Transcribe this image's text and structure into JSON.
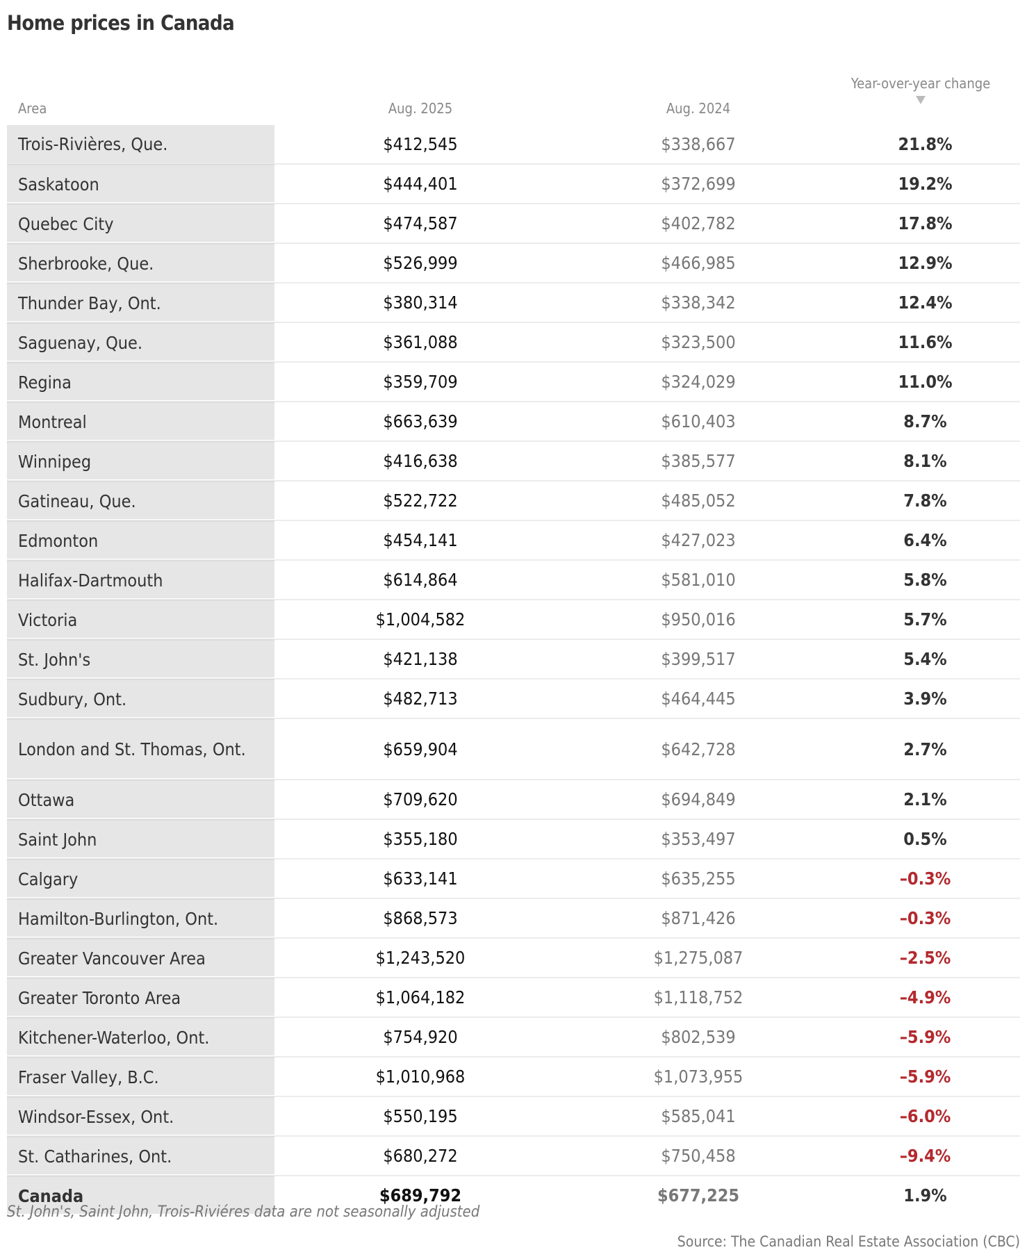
{
  "title": "Home prices in Canada",
  "columns": {
    "area": "Area",
    "aug2025": "Aug. 2025",
    "aug2024": "Aug. 2024",
    "yoy": "Year-over-year change",
    "sort_icon": "triangle-down-icon"
  },
  "colors": {
    "negative": "#b3292e",
    "area_bg": "#e6e6e6"
  },
  "rows": [
    {
      "area": "Trois-Rivières, Que.",
      "aug2025": "$412,545",
      "aug2024": "$338,667",
      "yoy": "21.8%",
      "negative": false
    },
    {
      "area": "Saskatoon",
      "aug2025": "$444,401",
      "aug2024": "$372,699",
      "yoy": "19.2%",
      "negative": false
    },
    {
      "area": "Quebec City",
      "aug2025": "$474,587",
      "aug2024": "$402,782",
      "yoy": "17.8%",
      "negative": false
    },
    {
      "area": "Sherbrooke, Que.",
      "aug2025": "$526,999",
      "aug2024": "$466,985",
      "yoy": "12.9%",
      "negative": false
    },
    {
      "area": "Thunder Bay, Ont.",
      "aug2025": "$380,314",
      "aug2024": "$338,342",
      "yoy": "12.4%",
      "negative": false
    },
    {
      "area": "Saguenay, Que.",
      "aug2025": "$361,088",
      "aug2024": "$323,500",
      "yoy": "11.6%",
      "negative": false
    },
    {
      "area": "Regina",
      "aug2025": "$359,709",
      "aug2024": "$324,029",
      "yoy": "11.0%",
      "negative": false
    },
    {
      "area": "Montreal",
      "aug2025": "$663,639",
      "aug2024": "$610,403",
      "yoy": "8.7%",
      "negative": false
    },
    {
      "area": "Winnipeg",
      "aug2025": "$416,638",
      "aug2024": "$385,577",
      "yoy": "8.1%",
      "negative": false
    },
    {
      "area": "Gatineau, Que.",
      "aug2025": "$522,722",
      "aug2024": "$485,052",
      "yoy": "7.8%",
      "negative": false
    },
    {
      "area": "Edmonton",
      "aug2025": "$454,141",
      "aug2024": "$427,023",
      "yoy": "6.4%",
      "negative": false
    },
    {
      "area": "Halifax-Dartmouth",
      "aug2025": "$614,864",
      "aug2024": "$581,010",
      "yoy": "5.8%",
      "negative": false
    },
    {
      "area": "Victoria",
      "aug2025": "$1,004,582",
      "aug2024": "$950,016",
      "yoy": "5.7%",
      "negative": false
    },
    {
      "area": "St. John's",
      "aug2025": "$421,138",
      "aug2024": "$399,517",
      "yoy": "5.4%",
      "negative": false
    },
    {
      "area": "Sudbury, Ont.",
      "aug2025": "$482,713",
      "aug2024": "$464,445",
      "yoy": "3.9%",
      "negative": false
    },
    {
      "area": "London and St. Thomas, Ont.",
      "aug2025": "$659,904",
      "aug2024": "$642,728",
      "yoy": "2.7%",
      "negative": false,
      "tall": true
    },
    {
      "area": "Ottawa",
      "aug2025": "$709,620",
      "aug2024": "$694,849",
      "yoy": "2.1%",
      "negative": false
    },
    {
      "area": "Saint John",
      "aug2025": "$355,180",
      "aug2024": "$353,497",
      "yoy": "0.5%",
      "negative": false
    },
    {
      "area": "Calgary",
      "aug2025": "$633,141",
      "aug2024": "$635,255",
      "yoy": "–0.3%",
      "negative": true
    },
    {
      "area": "Hamilton-Burlington, Ont.",
      "aug2025": "$868,573",
      "aug2024": "$871,426",
      "yoy": "–0.3%",
      "negative": true
    },
    {
      "area": "Greater Vancouver Area",
      "aug2025": "$1,243,520",
      "aug2024": "$1,275,087",
      "yoy": "–2.5%",
      "negative": true
    },
    {
      "area": "Greater Toronto Area",
      "aug2025": "$1,064,182",
      "aug2024": "$1,118,752",
      "yoy": "–4.9%",
      "negative": true
    },
    {
      "area": "Kitchener-Waterloo, Ont.",
      "aug2025": "$754,920",
      "aug2024": "$802,539",
      "yoy": "–5.9%",
      "negative": true
    },
    {
      "area": "Fraser Valley, B.C.",
      "aug2025": "$1,010,968",
      "aug2024": "$1,073,955",
      "yoy": "–5.9%",
      "negative": true
    },
    {
      "area": "Windsor-Essex, Ont.",
      "aug2025": "$550,195",
      "aug2024": "$585,041",
      "yoy": "–6.0%",
      "negative": true
    },
    {
      "area": "St. Catharines, Ont.",
      "aug2025": "$680,272",
      "aug2024": "$750,458",
      "yoy": "–9.4%",
      "negative": true
    }
  ],
  "total": {
    "area": "Canada",
    "aug2025": "$689,792",
    "aug2024": "$677,225",
    "yoy": "1.9%"
  },
  "note": "St. John's, Saint John, Trois-Riviéres data are not seasonally adjusted",
  "source": "Source: The Canadian Real Estate Association (CBC)"
}
